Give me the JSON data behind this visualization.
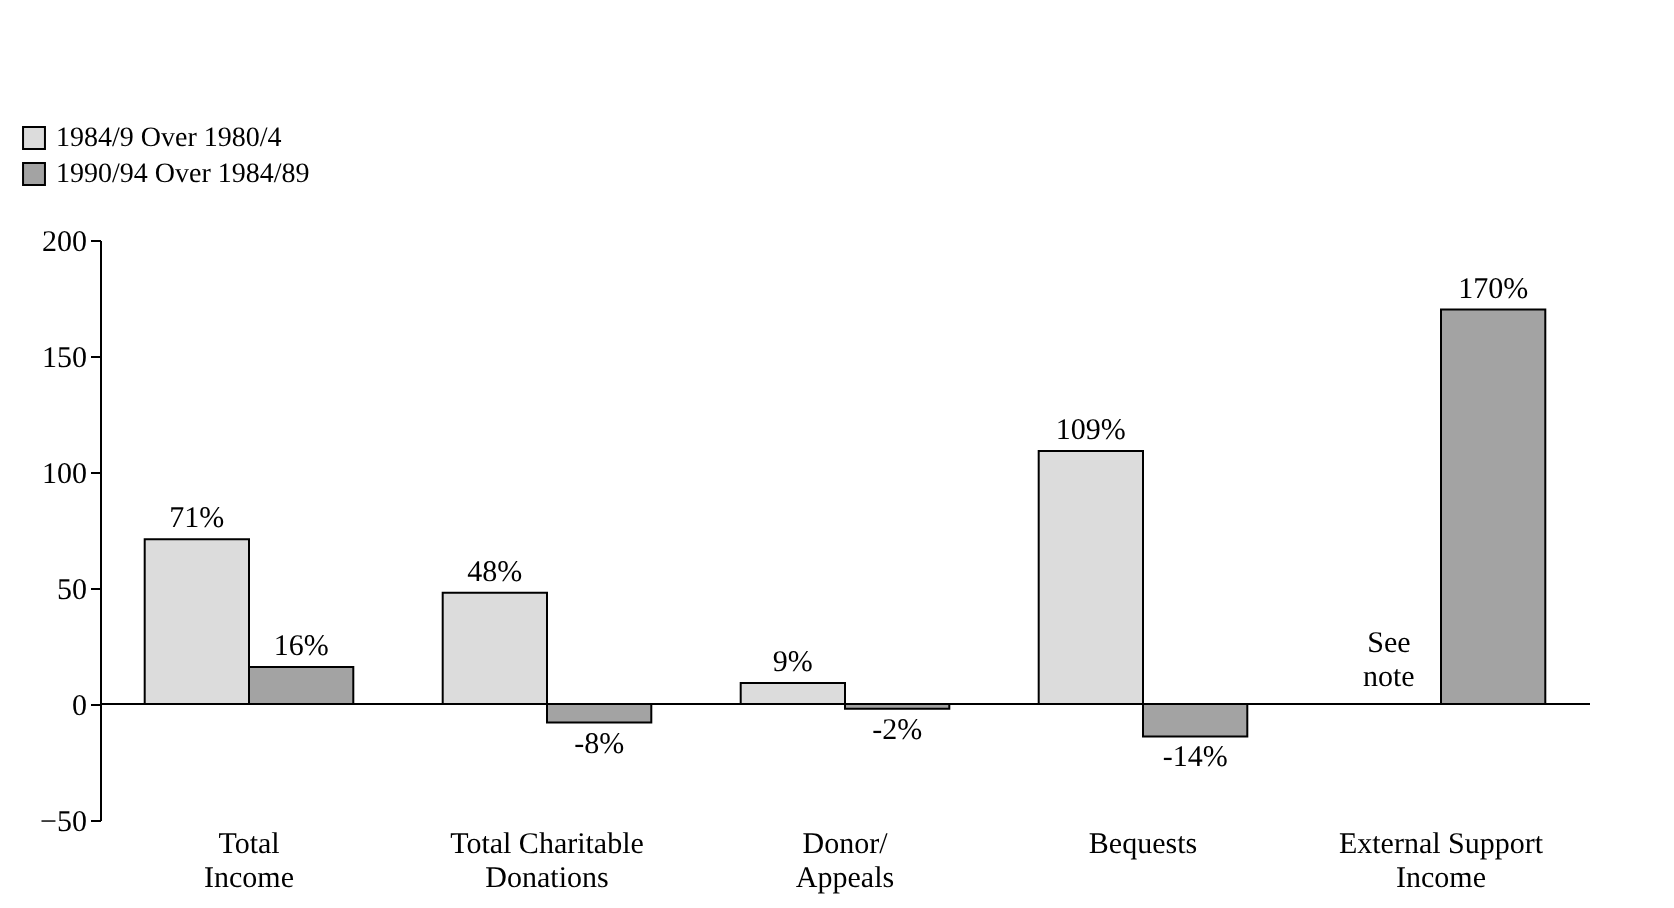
{
  "chart_data": {
    "type": "bar",
    "categories": [
      "Total Income",
      "Total Charitable Donations",
      "Donor/ Appeals",
      "Bequests",
      "External Support Income"
    ],
    "series": [
      {
        "name": "1984/9 Over 1980/4",
        "color": "#dcdcdc",
        "values": [
          71,
          48,
          9,
          109,
          null
        ],
        "value_labels": [
          "71%",
          "48%",
          "9%",
          "109%",
          null
        ]
      },
      {
        "name": "1990/94 Over 1984/89",
        "color": "#a3a3a3",
        "values": [
          16,
          -8,
          -2,
          -14,
          170
        ],
        "value_labels": [
          "16%",
          "-8%",
          "-2%",
          "-14%",
          "170%"
        ]
      }
    ],
    "ylim": [
      -50,
      200
    ],
    "yticks": [
      -50,
      0,
      50,
      100,
      150,
      200
    ],
    "ref_lines": [
      {
        "axis": "y",
        "value": 0
      }
    ],
    "annotations": [
      {
        "text": "See note",
        "x": "External Support Income",
        "y": 20
      }
    ],
    "grid": false,
    "legend": "top left"
  }
}
